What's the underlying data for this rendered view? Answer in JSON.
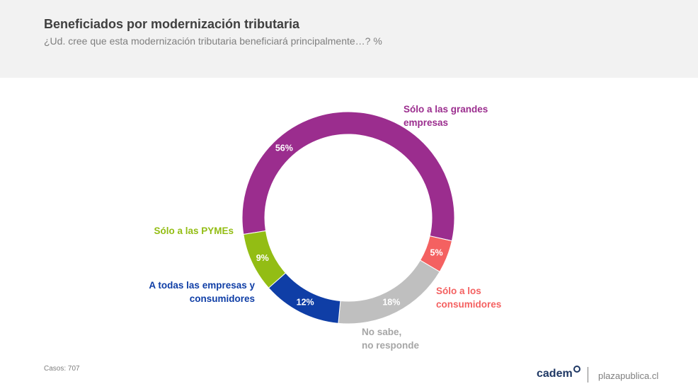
{
  "header": {
    "title": "Beneficiados por modernización tributaria",
    "subtitle": "¿Ud. cree que esta modernización tributaria beneficiará principalmente…? %"
  },
  "chart_data": {
    "type": "pie",
    "variant": "donut",
    "title": "Beneficiados por modernización tributaria",
    "subtitle": "¿Ud. cree que esta modernización tributaria beneficiará principalmente…? %",
    "slices": [
      {
        "label": "Sólo a las grandes empresas",
        "lines": [
          "Sólo a las grandes",
          "empresas"
        ],
        "value": 56,
        "display": "56%",
        "color": "#9b2d8e"
      },
      {
        "label": "Sólo a los consumidores",
        "lines": [
          "Sólo a los",
          "consumidores"
        ],
        "value": 5,
        "display": "5%",
        "color": "#f46161"
      },
      {
        "label": "No sabe, no responde",
        "lines": [
          "No sabe,",
          "no responde"
        ],
        "value": 18,
        "display": "18%",
        "color": "#bfbfbf",
        "text_color": "#a6a6a6"
      },
      {
        "label": "A todas las empresas y consumidores",
        "lines": [
          "A todas las empresas y",
          "consumidores"
        ],
        "value": 12,
        "display": "12%",
        "color": "#0f3ea6"
      },
      {
        "label": "Sólo a las PYMEs",
        "lines": [
          "Sólo a las PYMEs"
        ],
        "value": 9,
        "display": "9%",
        "color": "#93bd14"
      }
    ]
  },
  "footer": {
    "casos": "Casos: 707",
    "logo": "cadem",
    "site": "plazapublica.cl"
  }
}
